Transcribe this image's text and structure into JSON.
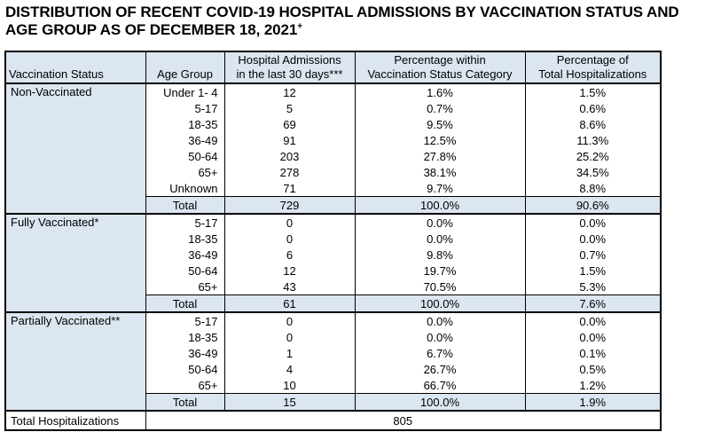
{
  "title": {
    "line1": "DISTRIBUTION OF RECENT COVID-19 HOSPITAL ADMISSIONS BY VACCINATION STATUS AND",
    "line2": "AGE GROUP AS OF DECEMBER 18, 2021",
    "marker": "+"
  },
  "headers": {
    "status": "Vaccination Status",
    "age": "Age Group",
    "admissions_1": "Hospital Admissions",
    "admissions_2": "in the last 30 days***",
    "pct_cat_1": "Percentage within",
    "pct_cat_2": "Vaccination Status Category",
    "pct_total_1": "Percentage of",
    "pct_total_2": "Total Hospitalizations"
  },
  "groups": [
    {
      "status": "Non-Vaccinated",
      "rows": [
        {
          "age": "Under 1- 4",
          "admissions": "12",
          "pct_category": "1.6%",
          "pct_total": "1.5%"
        },
        {
          "age": "5-17",
          "admissions": "5",
          "pct_category": "0.7%",
          "pct_total": "0.6%"
        },
        {
          "age": "18-35",
          "admissions": "69",
          "pct_category": "9.5%",
          "pct_total": "8.6%"
        },
        {
          "age": "36-49",
          "admissions": "91",
          "pct_category": "12.5%",
          "pct_total": "11.3%"
        },
        {
          "age": "50-64",
          "admissions": "203",
          "pct_category": "27.8%",
          "pct_total": "25.2%"
        },
        {
          "age": "65+",
          "admissions": "278",
          "pct_category": "38.1%",
          "pct_total": "34.5%"
        },
        {
          "age": "Unknown",
          "admissions": "71",
          "pct_category": "9.7%",
          "pct_total": "8.8%"
        }
      ],
      "total": {
        "label": "Total",
        "admissions": "729",
        "pct_category": "100.0%",
        "pct_total": "90.6%"
      }
    },
    {
      "status": "Fully Vaccinated*",
      "rows": [
        {
          "age": "5-17",
          "admissions": "0",
          "pct_category": "0.0%",
          "pct_total": "0.0%"
        },
        {
          "age": "18-35",
          "admissions": "0",
          "pct_category": "0.0%",
          "pct_total": "0.0%"
        },
        {
          "age": "36-49",
          "admissions": "6",
          "pct_category": "9.8%",
          "pct_total": "0.7%"
        },
        {
          "age": "50-64",
          "admissions": "12",
          "pct_category": "19.7%",
          "pct_total": "1.5%"
        },
        {
          "age": "65+",
          "admissions": "43",
          "pct_category": "70.5%",
          "pct_total": "5.3%"
        }
      ],
      "total": {
        "label": "Total",
        "admissions": "61",
        "pct_category": "100.0%",
        "pct_total": "7.6%"
      }
    },
    {
      "status": "Partially Vaccinated**",
      "rows": [
        {
          "age": "5-17",
          "admissions": "0",
          "pct_category": "0.0%",
          "pct_total": "0.0%"
        },
        {
          "age": "18-35",
          "admissions": "0",
          "pct_category": "0.0%",
          "pct_total": "0.0%"
        },
        {
          "age": "36-49",
          "admissions": "1",
          "pct_category": "6.7%",
          "pct_total": "0.1%"
        },
        {
          "age": "50-64",
          "admissions": "4",
          "pct_category": "26.7%",
          "pct_total": "0.5%"
        },
        {
          "age": "65+",
          "admissions": "10",
          "pct_category": "66.7%",
          "pct_total": "1.2%"
        }
      ],
      "total": {
        "label": "Total",
        "admissions": "15",
        "pct_category": "100.0%",
        "pct_total": "1.9%"
      }
    }
  ],
  "grand_total": {
    "label": "Total Hospitalizations",
    "value": "805"
  },
  "colors": {
    "header_fill": "#dce6f1",
    "border": "#000000"
  }
}
